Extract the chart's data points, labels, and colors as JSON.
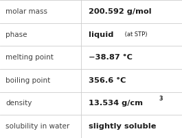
{
  "rows": [
    {
      "label": "molar mass",
      "value": "200.592 g/mol",
      "type": "simple"
    },
    {
      "label": "phase",
      "value": "liquid",
      "type": "with_sub",
      "sub": " (at STP)"
    },
    {
      "label": "melting point",
      "value": "−38.87 °C",
      "type": "simple"
    },
    {
      "label": "boiling point",
      "value": "356.6 °C",
      "type": "simple"
    },
    {
      "label": "density",
      "value": "13.534 g/cm",
      "type": "with_super",
      "super": "3"
    },
    {
      "label": "solubility in water",
      "value": "slightly soluble",
      "type": "simple"
    }
  ],
  "bg_color": "#ffffff",
  "label_color": "#404040",
  "value_color": "#1a1a1a",
  "line_color": "#cccccc",
  "col_split": 0.445,
  "font_size_label": 7.5,
  "font_size_value": 8.2,
  "font_size_sub": 6.0,
  "font_size_super": 5.8
}
